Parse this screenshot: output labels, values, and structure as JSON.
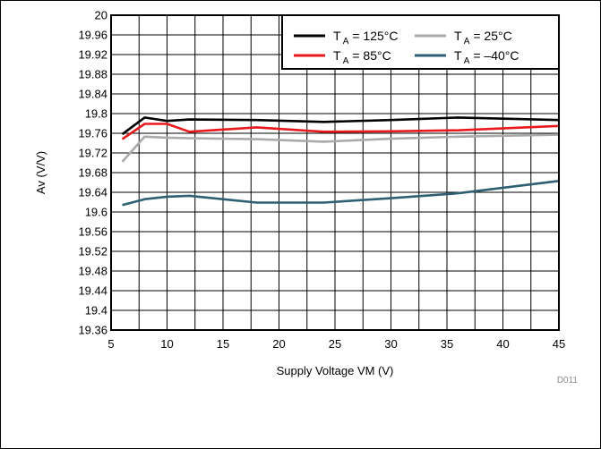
{
  "chart_data": {
    "type": "line",
    "title": "",
    "xlabel": "Supply Voltage VM (V)",
    "ylabel": "Av (V/V)",
    "xlim": [
      5,
      45
    ],
    "ylim": [
      19.36,
      20
    ],
    "x_ticks": [
      5,
      10,
      15,
      20,
      25,
      30,
      35,
      40,
      45
    ],
    "y_ticks": [
      19.36,
      19.4,
      19.44,
      19.48,
      19.52,
      19.56,
      19.6,
      19.64,
      19.68,
      19.72,
      19.76,
      19.8,
      19.84,
      19.88,
      19.92,
      19.96,
      20
    ],
    "x_tick_labels": [
      "5",
      "10",
      "15",
      "20",
      "25",
      "30",
      "35",
      "40",
      "45"
    ],
    "y_tick_labels": [
      "19.36",
      "19.4",
      "19.44",
      "19.48",
      "19.52",
      "19.56",
      "19.6",
      "19.64",
      "19.68",
      "19.72",
      "19.76",
      "19.8",
      "19.84",
      "19.88",
      "19.92",
      "19.96",
      "20"
    ],
    "grid": true,
    "legend_position": "top-right",
    "series": [
      {
        "name": "125°C",
        "color": "#000000",
        "x": [
          6,
          8,
          10,
          12,
          18,
          24,
          30,
          36,
          45
        ],
        "y": [
          19.758,
          19.792,
          19.785,
          19.788,
          19.787,
          19.783,
          19.787,
          19.792,
          19.787
        ]
      },
      {
        "name": "85°C",
        "color": "#e8191c",
        "x": [
          6,
          8,
          10,
          12,
          18,
          24,
          30,
          36,
          45
        ],
        "y": [
          19.748,
          19.779,
          19.779,
          19.763,
          19.772,
          19.763,
          19.764,
          19.766,
          19.775
        ]
      },
      {
        "name": "25°C",
        "color": "#aaaaaa",
        "x": [
          6,
          8,
          10,
          12,
          18,
          24,
          30,
          36,
          45
        ],
        "y": [
          19.702,
          19.753,
          19.751,
          19.75,
          19.748,
          19.743,
          19.749,
          19.753,
          19.757
        ]
      },
      {
        "name": "–40°C",
        "color": "#2e5f73",
        "x": [
          6,
          8,
          10,
          12,
          18,
          24,
          30,
          36,
          45
        ],
        "y": [
          19.614,
          19.626,
          19.631,
          19.633,
          19.619,
          19.619,
          19.628,
          19.638,
          19.663
        ]
      }
    ],
    "legend": {
      "prefix": "T",
      "subscript": "A",
      "equals": "= "
    },
    "annotation": "D011"
  }
}
